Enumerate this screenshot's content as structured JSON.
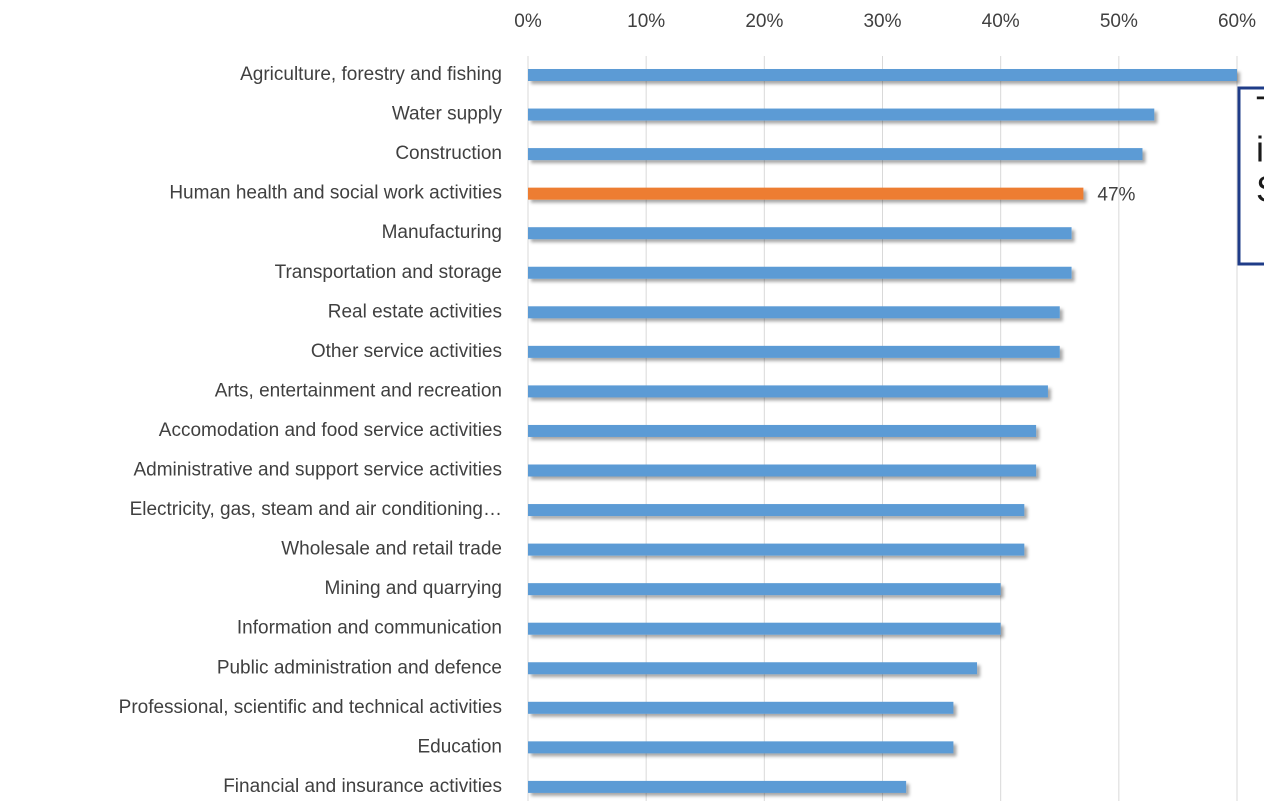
{
  "chart_data": {
    "type": "barh",
    "categories": [
      "Agriculture, forestry and fishing",
      "Water supply",
      "Construction",
      "Human health and social work activities",
      "Manufacturing",
      "Transportation and storage",
      "Real estate activities",
      "Other service activities",
      "Arts, entertainment and recreation",
      "Accomodation and food service activities",
      "Administrative and support service activities",
      "Electricity, gas, steam and air conditioning…",
      "Wholesale and retail trade",
      "Mining and quarrying",
      "Information and communication",
      "Public administration and defence",
      "Professional, scientific and technical activities",
      "Education",
      "Financial and insurance activities"
    ],
    "values": [
      60,
      53,
      52,
      47,
      46,
      46,
      45,
      45,
      44,
      43,
      43,
      42,
      42,
      40,
      40,
      38,
      36,
      36,
      32
    ],
    "value_labels": [
      null,
      null,
      null,
      "47%",
      null,
      null,
      null,
      null,
      null,
      null,
      null,
      null,
      null,
      null,
      null,
      null,
      null,
      null,
      null
    ],
    "colors": [
      "#5b9bd5",
      "#5b9bd5",
      "#5b9bd5",
      "#ed7d31",
      "#5b9bd5",
      "#5b9bd5",
      "#5b9bd5",
      "#5b9bd5",
      "#5b9bd5",
      "#5b9bd5",
      "#5b9bd5",
      "#5b9bd5",
      "#5b9bd5",
      "#5b9bd5",
      "#5b9bd5",
      "#5b9bd5",
      "#5b9bd5",
      "#5b9bd5",
      "#5b9bd5"
    ],
    "xlim": [
      0,
      60
    ],
    "xticks": [
      {
        "value": 0,
        "label": "0%"
      },
      {
        "value": 10,
        "label": "10%"
      },
      {
        "value": 20,
        "label": "20%"
      },
      {
        "value": 30,
        "label": "30%"
      },
      {
        "value": 40,
        "label": "40%"
      },
      {
        "value": 50,
        "label": "50%"
      },
      {
        "value": 60,
        "label": "60%"
      }
    ],
    "grid": true,
    "annotation": [
      "T",
      "i",
      "S"
    ]
  }
}
